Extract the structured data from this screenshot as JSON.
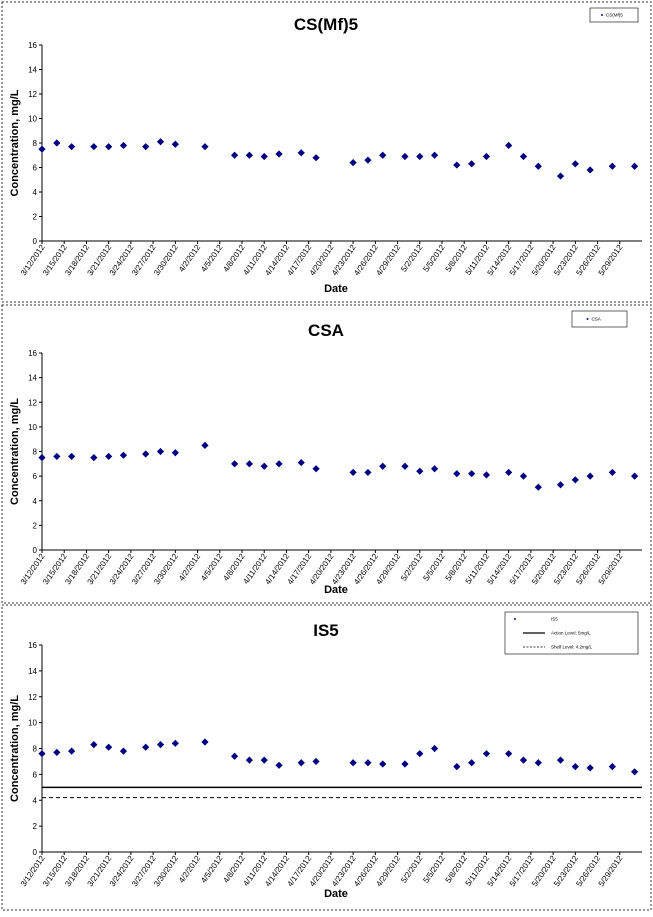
{
  "chart_data": [
    {
      "type": "scatter",
      "title": "CS(Mf)5",
      "xlabel": "Date",
      "ylabel": "Concentration, mg/L",
      "ylim": [
        0,
        16
      ],
      "yticks": [
        0,
        2,
        4,
        6,
        8,
        10,
        12,
        14,
        16
      ],
      "xlim": [
        "3/12/2012",
        "6/1/2012"
      ],
      "xtick_labels": [
        "3/12/2012",
        "3/15/2012",
        "3/18/2012",
        "3/21/2012",
        "3/24/2012",
        "3/27/2012",
        "3/30/2012",
        "4/2/2012",
        "4/5/2012",
        "4/8/2012",
        "4/11/2012",
        "4/14/2012",
        "4/17/2012",
        "4/20/2012",
        "4/23/2012",
        "4/26/2012",
        "4/29/2012",
        "5/2/2012",
        "5/5/2012",
        "5/8/2012",
        "5/11/2012",
        "5/14/2012",
        "5/17/2012",
        "5/20/2012",
        "5/23/2012",
        "5/26/2012",
        "5/29/2012"
      ],
      "legend": {
        "position": "top-right",
        "entries": [
          {
            "label": "CS(Mf)5",
            "marker": "diamond"
          }
        ]
      },
      "series": [
        {
          "name": "CS(Mf)5",
          "color": "#000080",
          "marker": "diamond",
          "x": [
            "3/12/2012",
            "3/14/2012",
            "3/16/2012",
            "3/19/2012",
            "3/21/2012",
            "3/23/2012",
            "3/26/2012",
            "3/28/2012",
            "3/30/2012",
            "4/3/2012",
            "4/7/2012",
            "4/9/2012",
            "4/11/2012",
            "4/13/2012",
            "4/16/2012",
            "4/18/2012",
            "4/23/2012",
            "4/25/2012",
            "4/27/2012",
            "4/30/2012",
            "5/2/2012",
            "5/4/2012",
            "5/7/2012",
            "5/9/2012",
            "5/11/2012",
            "5/14/2012",
            "5/16/2012",
            "5/18/2012",
            "5/21/2012",
            "5/23/2012",
            "5/25/2012",
            "5/28/2012",
            "5/31/2012"
          ],
          "y": [
            7.5,
            8.0,
            7.7,
            7.7,
            7.7,
            7.8,
            7.7,
            8.1,
            7.9,
            7.7,
            7.0,
            7.0,
            6.9,
            7.1,
            7.2,
            6.8,
            6.4,
            6.6,
            7.0,
            6.9,
            6.9,
            7.0,
            6.2,
            6.3,
            6.9,
            7.8,
            6.9,
            6.1,
            5.3,
            6.3,
            5.8,
            6.1,
            6.1
          ]
        }
      ]
    },
    {
      "type": "scatter",
      "title": "CSA",
      "xlabel": "Date",
      "ylabel": "Concentration, mg/L",
      "ylim": [
        0,
        16
      ],
      "yticks": [
        0,
        2,
        4,
        6,
        8,
        10,
        12,
        14,
        16
      ],
      "xlim": [
        "3/12/2012",
        "6/1/2012"
      ],
      "xtick_labels": [
        "3/12/2012",
        "3/15/2012",
        "3/18/2012",
        "3/21/2012",
        "3/24/2012",
        "3/27/2012",
        "3/30/2012",
        "4/2/2012",
        "4/5/2012",
        "4/8/2012",
        "4/11/2012",
        "4/14/2012",
        "4/17/2012",
        "4/20/2012",
        "4/23/2012",
        "4/26/2012",
        "4/29/2012",
        "5/2/2012",
        "5/5/2012",
        "5/8/2012",
        "5/11/2012",
        "5/14/2012",
        "5/17/2012",
        "5/20/2012",
        "5/23/2012",
        "5/26/2012",
        "5/29/2012"
      ],
      "legend": {
        "position": "top-right",
        "entries": [
          {
            "label": "CSA",
            "marker": "diamond"
          }
        ]
      },
      "series": [
        {
          "name": "CSA",
          "color": "#000080",
          "marker": "diamond",
          "x": [
            "3/12/2012",
            "3/14/2012",
            "3/16/2012",
            "3/19/2012",
            "3/21/2012",
            "3/23/2012",
            "3/26/2012",
            "3/28/2012",
            "3/30/2012",
            "4/3/2012",
            "4/7/2012",
            "4/9/2012",
            "4/11/2012",
            "4/13/2012",
            "4/16/2012",
            "4/18/2012",
            "4/23/2012",
            "4/25/2012",
            "4/27/2012",
            "4/30/2012",
            "5/2/2012",
            "5/4/2012",
            "5/7/2012",
            "5/9/2012",
            "5/11/2012",
            "5/14/2012",
            "5/16/2012",
            "5/18/2012",
            "5/21/2012",
            "5/23/2012",
            "5/25/2012",
            "5/28/2012",
            "5/31/2012"
          ],
          "y": [
            7.5,
            7.6,
            7.6,
            7.5,
            7.6,
            7.7,
            7.8,
            8.0,
            7.9,
            8.5,
            7.0,
            7.0,
            6.8,
            7.0,
            7.1,
            6.6,
            6.3,
            6.3,
            6.8,
            6.8,
            6.4,
            6.6,
            6.2,
            6.2,
            6.1,
            6.3,
            6.0,
            5.1,
            5.3,
            5.7,
            6.0,
            6.3,
            6.0
          ]
        }
      ]
    },
    {
      "type": "scatter",
      "title": "IS5",
      "xlabel": "Date",
      "ylabel": "Concentration, mg/L",
      "ylim": [
        0,
        16
      ],
      "yticks": [
        0,
        2,
        4,
        6,
        8,
        10,
        12,
        14,
        16
      ],
      "xlim": [
        "3/12/2012",
        "6/1/2012"
      ],
      "xtick_labels": [
        "3/12/2012",
        "3/15/2012",
        "3/18/2012",
        "3/21/2012",
        "3/24/2012",
        "3/27/2012",
        "3/30/2012",
        "4/2/2012",
        "4/5/2012",
        "4/8/2012",
        "4/11/2012",
        "4/14/2012",
        "4/17/2012",
        "4/20/2012",
        "4/23/2012",
        "4/26/2012",
        "4/29/2012",
        "5/2/2012",
        "5/5/2012",
        "5/8/2012",
        "5/11/2012",
        "5/14/2012",
        "5/17/2012",
        "5/20/2012",
        "5/23/2012",
        "5/26/2012",
        "5/29/2012"
      ],
      "legend": {
        "position": "top-right",
        "entries": [
          {
            "label": "IS5",
            "marker": "diamond"
          },
          {
            "label": "Action Level: 5mg/L",
            "marker": "solid-line"
          },
          {
            "label": "Shelf Level: 4.2mg/L",
            "marker": "dashed-line"
          }
        ]
      },
      "series": [
        {
          "name": "IS5",
          "color": "#000080",
          "marker": "diamond",
          "x": [
            "3/12/2012",
            "3/14/2012",
            "3/16/2012",
            "3/19/2012",
            "3/21/2012",
            "3/23/2012",
            "3/26/2012",
            "3/28/2012",
            "3/30/2012",
            "4/3/2012",
            "4/7/2012",
            "4/9/2012",
            "4/11/2012",
            "4/13/2012",
            "4/16/2012",
            "4/18/2012",
            "4/23/2012",
            "4/25/2012",
            "4/27/2012",
            "4/30/2012",
            "5/2/2012",
            "5/4/2012",
            "5/7/2012",
            "5/9/2012",
            "5/11/2012",
            "5/14/2012",
            "5/16/2012",
            "5/18/2012",
            "5/21/2012",
            "5/23/2012",
            "5/25/2012",
            "5/28/2012",
            "5/31/2012"
          ],
          "y": [
            7.6,
            7.7,
            7.8,
            8.3,
            8.1,
            7.8,
            8.1,
            8.3,
            8.4,
            8.5,
            7.4,
            7.1,
            7.1,
            6.7,
            6.9,
            7.0,
            6.9,
            6.9,
            6.8,
            6.8,
            7.6,
            8.0,
            6.6,
            6.9,
            7.6,
            7.6,
            7.1,
            6.9,
            7.1,
            6.6,
            6.5,
            6.6,
            6.2
          ]
        }
      ],
      "reference_lines": [
        {
          "y": 5.0,
          "style": "solid",
          "color": "#000000"
        },
        {
          "y": 4.2,
          "style": "dashed",
          "color": "#000000"
        }
      ]
    }
  ]
}
